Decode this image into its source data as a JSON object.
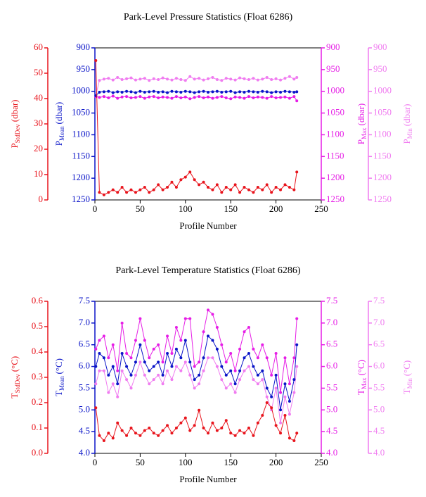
{
  "chart_data": [
    {
      "type": "line",
      "title": "Park-Level Pressure Statistics (Float 6286)",
      "x_label": "Profile Number",
      "xlim": [
        0,
        250
      ],
      "xticks": [
        0,
        50,
        100,
        150,
        200,
        250
      ],
      "x": [
        1,
        5,
        10,
        15,
        20,
        25,
        30,
        35,
        40,
        45,
        50,
        55,
        60,
        65,
        70,
        75,
        80,
        85,
        90,
        95,
        100,
        105,
        110,
        115,
        120,
        125,
        130,
        135,
        140,
        145,
        150,
        155,
        160,
        165,
        170,
        175,
        180,
        185,
        190,
        195,
        200,
        205,
        210,
        215,
        220,
        223
      ],
      "axes": [
        {
          "label": {
            "symbol": "P",
            "sub": "StdDev",
            "unit": "(dbar)"
          },
          "color": "#e8141c",
          "lim": [
            0,
            60
          ],
          "ticks": [
            0,
            10,
            20,
            30,
            40,
            50,
            60
          ]
        },
        {
          "label": {
            "symbol": "P",
            "sub": "Mean",
            "unit": "(dbar)"
          },
          "color": "#0a14c8",
          "lim": [
            1250,
            900
          ],
          "ticks": [
            900,
            950,
            1000,
            1050,
            1100,
            1150,
            1200,
            1250
          ]
        },
        {
          "label": {
            "symbol": "P",
            "sub": "Max",
            "unit": "(dbar)"
          },
          "color": "#e61ee6",
          "lim": [
            1250,
            900
          ],
          "ticks": [
            900,
            950,
            1000,
            1050,
            1100,
            1150,
            1200,
            1250
          ]
        },
        {
          "label": {
            "symbol": "P",
            "sub": "Min",
            "unit": "(dbar)"
          },
          "color": "#f07cf0",
          "lim": [
            1250,
            900
          ],
          "ticks": [
            900,
            950,
            1000,
            1050,
            1100,
            1150,
            1200,
            1250
          ]
        }
      ],
      "series": [
        {
          "axis": 0,
          "color": "#e8141c",
          "values": [
            55,
            3,
            2,
            3,
            4,
            3,
            5,
            3,
            4,
            3,
            4,
            5,
            3,
            4,
            6,
            4,
            5,
            7,
            5,
            8,
            9,
            11,
            8,
            6,
            7,
            5,
            4,
            6,
            3,
            5,
            4,
            6,
            3,
            5,
            4,
            3,
            5,
            4,
            6,
            3,
            5,
            4,
            6,
            5,
            4,
            11
          ]
        },
        {
          "axis": 1,
          "color": "#0a14c8",
          "values": [
            1010,
            1002,
            1001,
            1000,
            1003,
            1001,
            1002,
            1000,
            1001,
            1003,
            1000,
            1002,
            1001,
            1000,
            1002,
            1001,
            1003,
            1000,
            1001,
            1002,
            1000,
            1001,
            1003,
            1001,
            1000,
            1002,
            1001,
            1000,
            1002,
            1001,
            1000,
            1003,
            1001,
            1002,
            1000,
            1001,
            1002,
            1000,
            1001,
            1003,
            1001,
            1002,
            1000,
            1001,
            1002,
            1001
          ]
        },
        {
          "axis": 2,
          "color": "#e61ee6",
          "values": [
            1012,
            1014,
            1012,
            1015,
            1011,
            1016,
            1013,
            1012,
            1015,
            1014,
            1012,
            1016,
            1013,
            1012,
            1015,
            1013,
            1014,
            1016,
            1012,
            1015,
            1013,
            1017,
            1014,
            1012,
            1015,
            1013,
            1016,
            1014,
            1012,
            1015,
            1017,
            1013,
            1014,
            1016,
            1012,
            1015,
            1013,
            1014,
            1016,
            1012,
            1015,
            1014,
            1013,
            1016,
            1012,
            1022
          ]
        },
        {
          "axis": 3,
          "color": "#f07cf0",
          "values": [
            1010,
            975,
            972,
            970,
            974,
            968,
            973,
            971,
            969,
            974,
            972,
            970,
            975,
            971,
            973,
            969,
            972,
            974,
            970,
            973,
            975,
            966,
            972,
            970,
            974,
            971,
            968,
            973,
            975,
            970,
            972,
            974,
            969,
            971,
            973,
            970,
            974,
            972,
            968,
            973,
            971,
            974,
            970,
            966,
            972,
            968
          ]
        }
      ]
    },
    {
      "type": "line",
      "title": "Park-Level Temperature Statistics (Float 6286)",
      "x_label": "Profile Number",
      "xlim": [
        0,
        250
      ],
      "xticks": [
        0,
        50,
        100,
        150,
        200,
        250
      ],
      "x": [
        1,
        5,
        10,
        15,
        20,
        25,
        30,
        35,
        40,
        45,
        50,
        55,
        60,
        65,
        70,
        75,
        80,
        85,
        90,
        95,
        100,
        105,
        110,
        115,
        120,
        125,
        130,
        135,
        140,
        145,
        150,
        155,
        160,
        165,
        170,
        175,
        180,
        185,
        190,
        195,
        200,
        205,
        210,
        215,
        220,
        223
      ],
      "axes": [
        {
          "label": {
            "symbol": "T",
            "sub": "StdDev",
            "unit": "(°C)"
          },
          "color": "#e8141c",
          "lim": [
            0,
            0.6
          ],
          "ticks": [
            {
              "value": 0,
              "label": "0.0"
            },
            0.1,
            0.2,
            0.3,
            0.4,
            0.5,
            0.6
          ]
        },
        {
          "label": {
            "symbol": "T",
            "sub": "Mean",
            "unit": "(°C)"
          },
          "color": "#0a14c8",
          "lim": [
            4,
            7.5
          ],
          "ticks": [
            {
              "value": 4,
              "label": "4.0"
            },
            4.5,
            {
              "value": 5,
              "label": "5.0"
            },
            5.5,
            {
              "value": 6,
              "label": "6.0"
            },
            6.5,
            {
              "value": 7,
              "label": "7.0"
            },
            7.5
          ]
        },
        {
          "label": {
            "symbol": "T",
            "sub": "Max",
            "unit": "(°C)"
          },
          "color": "#e61ee6",
          "lim": [
            4,
            7.5
          ],
          "ticks": [
            {
              "value": 4,
              "label": "4.0"
            },
            4.5,
            {
              "value": 5,
              "label": "5.0"
            },
            5.5,
            {
              "value": 6,
              "label": "6.0"
            },
            6.5,
            {
              "value": 7,
              "label": "7.0"
            },
            7.5
          ]
        },
        {
          "label": {
            "symbol": "T",
            "sub": "Min",
            "unit": "(°C)"
          },
          "color": "#f07cf0",
          "lim": [
            4,
            7.5
          ],
          "ticks": [
            {
              "value": 4,
              "label": "4.0"
            },
            4.5,
            {
              "value": 5,
              "label": "5.0"
            },
            5.5,
            {
              "value": 6,
              "label": "6.0"
            },
            6.5,
            {
              "value": 7,
              "label": "7.0"
            },
            7.5
          ]
        }
      ],
      "series": [
        {
          "axis": 0,
          "color": "#e8141c",
          "values": [
            0.18,
            0.07,
            0.05,
            0.08,
            0.06,
            0.12,
            0.09,
            0.07,
            0.1,
            0.08,
            0.07,
            0.09,
            0.1,
            0.08,
            0.07,
            0.09,
            0.11,
            0.08,
            0.1,
            0.12,
            0.14,
            0.09,
            0.11,
            0.17,
            0.1,
            0.08,
            0.12,
            0.09,
            0.1,
            0.13,
            0.08,
            0.07,
            0.09,
            0.08,
            0.1,
            0.07,
            0.12,
            0.15,
            0.2,
            0.18,
            0.11,
            0.08,
            0.15,
            0.06,
            0.05,
            0.08
          ]
        },
        {
          "axis": 1,
          "color": "#0a14c8",
          "values": [
            6,
            6.3,
            6.2,
            5.8,
            6,
            5.6,
            6.3,
            6,
            5.8,
            6.1,
            6.5,
            6.1,
            5.9,
            6,
            6.1,
            5.8,
            6.3,
            6,
            6.4,
            6.2,
            6.6,
            6.1,
            5.7,
            5.8,
            6.2,
            6.7,
            6.6,
            6.4,
            6,
            5.8,
            5.9,
            5.6,
            5.9,
            6.2,
            6.3,
            6,
            5.8,
            5.9,
            5.5,
            5.3,
            5.8,
            5,
            5.6,
            5.2,
            5.7,
            6.5
          ]
        },
        {
          "axis": 2,
          "color": "#e61ee6",
          "values": [
            6.4,
            6.6,
            6.7,
            6.2,
            6.5,
            5.9,
            7,
            6.3,
            6.2,
            6.6,
            7.1,
            6.6,
            6.2,
            6.4,
            6.5,
            6.1,
            6.7,
            6.3,
            6.9,
            6.6,
            7.1,
            7.1,
            6,
            6.1,
            6.8,
            7.3,
            7.2,
            6.9,
            6.5,
            6.1,
            6.3,
            5.9,
            6.4,
            6.8,
            6.9,
            6.4,
            6.2,
            6.5,
            6.2,
            5.8,
            6.3,
            5.4,
            6.2,
            5.6,
            6.2,
            7.1
          ]
        },
        {
          "axis": 3,
          "color": "#f07cf0",
          "values": [
            5.6,
            5.9,
            5.9,
            5.4,
            5.6,
            5.3,
            5.9,
            5.7,
            5.5,
            5.8,
            6.1,
            5.8,
            5.6,
            5.7,
            5.8,
            5.6,
            5.9,
            5.7,
            6,
            5.9,
            6.1,
            5.8,
            5.5,
            5.6,
            5.9,
            6.2,
            6.2,
            6,
            5.7,
            5.5,
            5.6,
            5.4,
            5.7,
            5.9,
            6,
            5.7,
            5.6,
            5.7,
            5.3,
            5,
            5.5,
            4.7,
            5.3,
            4.9,
            5.4,
            6
          ]
        }
      ]
    }
  ]
}
